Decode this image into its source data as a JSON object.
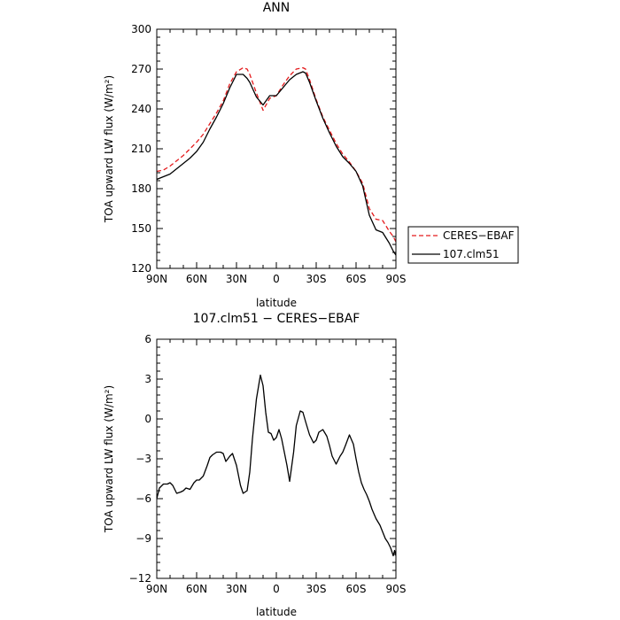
{
  "chart_data": [
    {
      "type": "line",
      "title": "ANN",
      "xlabel": "latitude",
      "ylabel": "TOA upward LW flux (W/m²)",
      "xlim": [
        90,
        -90
      ],
      "ylim": [
        120,
        300
      ],
      "x_ticks": [
        90,
        60,
        30,
        0,
        -30,
        -60,
        -90
      ],
      "x_tick_labels": [
        "90N",
        "60N",
        "30N",
        "0",
        "30S",
        "60S",
        "90S"
      ],
      "y_ticks": [
        120,
        150,
        180,
        210,
        240,
        270,
        300
      ],
      "y_tick_labels": [
        "120",
        "150",
        "180",
        "210",
        "240",
        "270",
        "300"
      ],
      "legend": "right-outside",
      "series": [
        {
          "name": "CERES−EBAF",
          "color": "#e41a1c",
          "dash": "dashed",
          "x": [
            90,
            85,
            80,
            75,
            70,
            65,
            60,
            55,
            50,
            45,
            40,
            35,
            30,
            25,
            22,
            20,
            15,
            10,
            5,
            0,
            -5,
            -10,
            -15,
            -20,
            -22,
            -25,
            -30,
            -35,
            -40,
            -45,
            -50,
            -55,
            -60,
            -65,
            -70,
            -75,
            -80,
            -85,
            -88,
            -90
          ],
          "y": [
            193,
            194,
            197,
            201,
            205,
            210,
            215,
            221,
            229,
            237,
            246,
            259,
            268,
            271,
            270,
            266,
            252,
            239,
            248,
            250,
            258,
            265,
            270,
            271,
            270,
            262,
            247,
            234,
            224,
            214,
            206,
            200,
            193,
            184,
            165,
            157,
            156,
            148,
            144,
            140
          ]
        },
        {
          "name": "107.clm51",
          "color": "#000000",
          "dash": "solid",
          "x": [
            90,
            85,
            80,
            75,
            70,
            65,
            60,
            55,
            50,
            45,
            40,
            35,
            30,
            25,
            22,
            20,
            15,
            10,
            5,
            0,
            -5,
            -10,
            -15,
            -20,
            -22,
            -25,
            -30,
            -35,
            -40,
            -45,
            -50,
            -55,
            -60,
            -65,
            -70,
            -75,
            -80,
            -85,
            -88,
            -90
          ],
          "y": [
            187,
            189,
            191,
            195,
            199,
            203,
            208,
            215,
            225,
            234,
            244,
            256,
            266,
            266,
            263,
            260,
            249,
            243,
            250,
            250,
            256,
            262,
            266,
            268,
            267,
            260,
            246,
            233,
            222,
            212,
            204,
            199,
            193,
            182,
            160,
            149,
            147,
            139,
            133,
            130
          ]
        }
      ]
    },
    {
      "type": "line",
      "title": "107.clm51 − CERES−EBAF",
      "xlabel": "latitude",
      "ylabel": "TOA upward LW flux (W/m²)",
      "xlim": [
        90,
        -90
      ],
      "ylim": [
        -12,
        6
      ],
      "x_ticks": [
        90,
        60,
        30,
        0,
        -30,
        -60,
        -90
      ],
      "x_tick_labels": [
        "90N",
        "60N",
        "30N",
        "0",
        "30S",
        "60S",
        "90S"
      ],
      "y_ticks": [
        -12,
        -9,
        -6,
        -3,
        0,
        3,
        6
      ],
      "y_tick_labels": [
        "−12",
        "−9",
        "−6",
        "−3",
        "0",
        "3",
        "6"
      ],
      "series": [
        {
          "color": "#000000",
          "dash": "solid",
          "x": [
            90,
            88,
            85,
            82,
            80,
            78,
            75,
            72,
            70,
            68,
            65,
            62,
            60,
            58,
            55,
            52,
            50,
            48,
            45,
            42,
            40,
            38,
            35,
            33,
            30,
            27,
            25,
            22,
            20,
            18,
            15,
            12,
            10,
            8,
            6,
            4,
            2,
            0,
            -2,
            -4,
            -6,
            -8,
            -10,
            -13,
            -15,
            -18,
            -20,
            -22,
            -25,
            -28,
            -30,
            -32,
            -35,
            -38,
            -40,
            -42,
            -45,
            -48,
            -50,
            -52,
            -55,
            -58,
            -60,
            -62,
            -64,
            -66,
            -68,
            -70,
            -72,
            -75,
            -78,
            -80,
            -82,
            -84,
            -86,
            -88,
            -89,
            -90
          ],
          "y": [
            -6.0,
            -5.2,
            -4.9,
            -4.9,
            -4.8,
            -5.0,
            -5.6,
            -5.5,
            -5.4,
            -5.2,
            -5.3,
            -4.8,
            -4.6,
            -4.6,
            -4.3,
            -3.5,
            -2.9,
            -2.7,
            -2.5,
            -2.5,
            -2.6,
            -3.2,
            -2.8,
            -2.6,
            -3.5,
            -5.0,
            -5.6,
            -5.4,
            -4.0,
            -1.5,
            1.5,
            3.3,
            2.5,
            0.5,
            -1.0,
            -1.1,
            -1.6,
            -1.4,
            -0.8,
            -1.5,
            -2.5,
            -3.5,
            -4.7,
            -2.5,
            -0.5,
            0.6,
            0.5,
            -0.2,
            -1.2,
            -1.8,
            -1.6,
            -1.0,
            -0.8,
            -1.3,
            -2.0,
            -2.8,
            -3.4,
            -2.8,
            -2.5,
            -2.0,
            -1.2,
            -1.9,
            -3.0,
            -4.0,
            -4.8,
            -5.3,
            -5.7,
            -6.2,
            -6.8,
            -7.5,
            -8.0,
            -8.5,
            -9.0,
            -9.3,
            -9.7,
            -10.3,
            -9.9,
            -10.3
          ]
        }
      ]
    }
  ]
}
